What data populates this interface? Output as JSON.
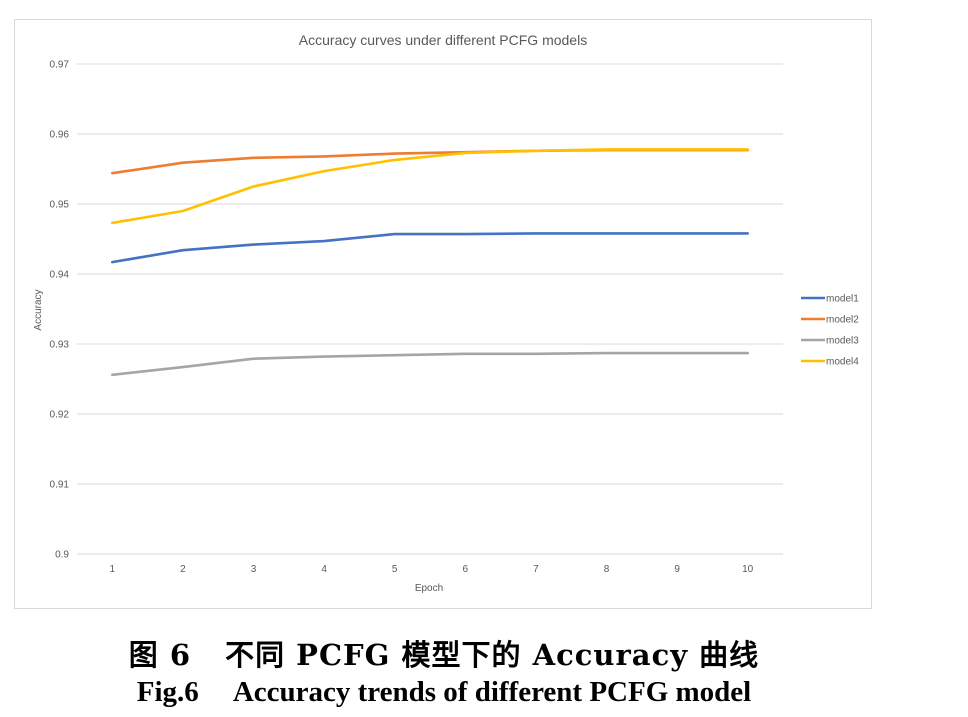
{
  "chart_data": {
    "type": "line",
    "title": "Accuracy curves under different PCFG models",
    "xlabel": "Epoch",
    "ylabel": "Accuracy",
    "categories": [
      "1",
      "2",
      "3",
      "4",
      "5",
      "6",
      "7",
      "8",
      "9",
      "10"
    ],
    "ylim": [
      0.9,
      0.97
    ],
    "yticks": [
      "0.9",
      "0.91",
      "0.92",
      "0.93",
      "0.94",
      "0.95",
      "0.96",
      "0.97"
    ],
    "grid": "horizontal",
    "legend_position": "right",
    "series": [
      {
        "name": "model1",
        "color": "#4472c4",
        "values": [
          0.9417,
          0.9434,
          0.9442,
          0.9447,
          0.9457,
          0.9457,
          0.9458,
          0.9458,
          0.9458,
          0.9458
        ]
      },
      {
        "name": "model2",
        "color": "#ed7d31",
        "values": [
          0.9544,
          0.9559,
          0.9566,
          0.9568,
          0.9572,
          0.9574,
          0.9576,
          0.9577,
          0.9577,
          0.9577
        ]
      },
      {
        "name": "model3",
        "color": "#a5a5a5",
        "values": [
          0.9256,
          0.9267,
          0.9279,
          0.9282,
          0.9284,
          0.9286,
          0.9286,
          0.9287,
          0.9287,
          0.9287
        ]
      },
      {
        "name": "model4",
        "color": "#ffc000",
        "values": [
          0.9473,
          0.949,
          0.9525,
          0.9547,
          0.9563,
          0.9573,
          0.9576,
          0.9578,
          0.9578,
          0.9578
        ]
      }
    ]
  },
  "caption": {
    "cn_label": "图 6",
    "cn_text": "不同 PCFG 模型下的 Accuracy 曲线",
    "en_label": "Fig.6",
    "en_text": "Accuracy trends of different PCFG model"
  }
}
